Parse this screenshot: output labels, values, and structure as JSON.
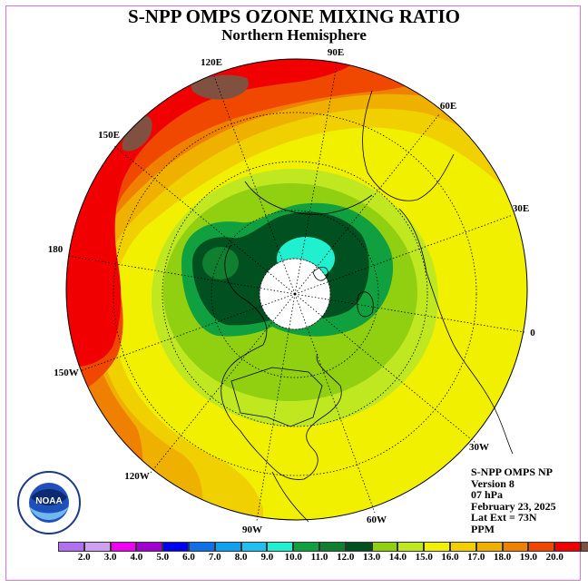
{
  "title": "S-NPP OMPS OZONE MIXING RATIO",
  "subtitle": "Northern Hemisphere",
  "info": {
    "product": "S-NPP OMPS NP",
    "version": "Version 8",
    "level": "07 hPa",
    "date": "February 23, 2025",
    "lat_ext": "Lat Ext = 73N",
    "units": "PPM"
  },
  "longitude_labels": {
    "e90": "90E",
    "e60": "60E",
    "e30": "30E",
    "zero": "0",
    "w30": "30W",
    "w60": "60W",
    "w90": "90W",
    "w120": "120W",
    "w150": "150W",
    "lon180": "180",
    "e150": "150E",
    "e120": "120E"
  },
  "logo": {
    "icon": "noaa-logo-icon",
    "text": "NOAA"
  },
  "colorbar": {
    "colors": [
      "#b070f0",
      "#d0a0f0",
      "#f000f0",
      "#a000d0",
      "#0000f0",
      "#1070e8",
      "#10a0f0",
      "#20c0f0",
      "#20f0d0",
      "#10a040",
      "#108030",
      "#005020",
      "#90d010",
      "#c0e820",
      "#f0f000",
      "#f0d000",
      "#f0b000",
      "#f08000",
      "#f04800",
      "#f00000",
      "#805040"
    ],
    "ticks": [
      "2.0",
      "3.0",
      "4.0",
      "5.0",
      "6.0",
      "7.0",
      "8.0",
      "9.0",
      "10.0",
      "11.0",
      "12.0",
      "13.0",
      "14.0",
      "15.0",
      "16.0",
      "17.0",
      "18.0",
      "19.0",
      "20.0"
    ]
  }
}
